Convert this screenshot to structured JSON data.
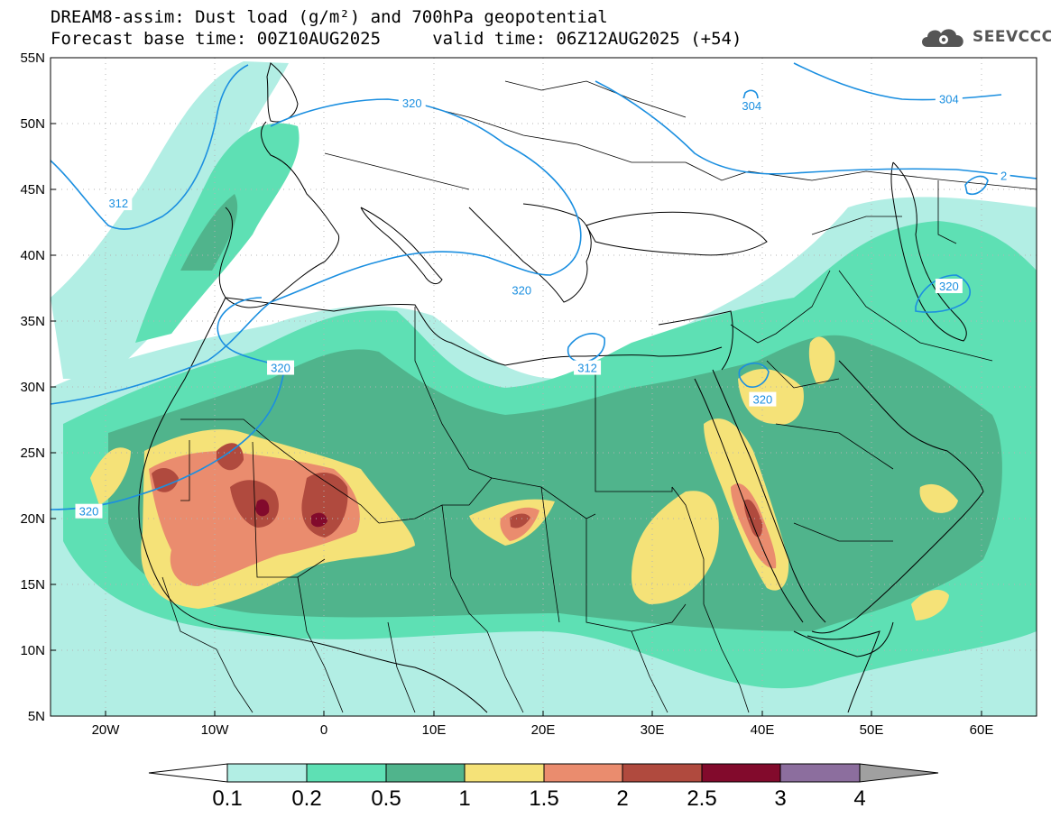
{
  "title": {
    "line1": "DREAM8-assim: Dust load (g/m²) and 700hPa geopotential",
    "line2": "Forecast base time: 00Z10AUG2025     valid time: 06Z12AUG2025 (+54)"
  },
  "logo": {
    "text": "SEEVCCC",
    "icon": "cloud-gear-icon"
  },
  "axes": {
    "lat_labels": [
      "55N",
      "50N",
      "45N",
      "40N",
      "35N",
      "30N",
      "25N",
      "20N",
      "15N",
      "10N",
      "5N"
    ],
    "lon_labels": [
      "20W",
      "10W",
      "0",
      "10E",
      "20E",
      "30E",
      "40E",
      "50E",
      "60E"
    ],
    "lon_range": [
      -25,
      65
    ],
    "lat_range": [
      5,
      55
    ]
  },
  "contour_labels": [
    {
      "text": "320",
      "lon": 8,
      "lat": 51.5
    },
    {
      "text": "304",
      "lon": 39,
      "lat": 51.3
    },
    {
      "text": "304",
      "lon": 57,
      "lat": 51.8
    },
    {
      "text": "312",
      "lon": -18.8,
      "lat": 43.9
    },
    {
      "text": "320",
      "lon": 18,
      "lat": 37.3
    },
    {
      "text": "320",
      "lon": 57,
      "lat": 37.6
    },
    {
      "text": "312",
      "lon": 24,
      "lat": 31.4
    },
    {
      "text": "320",
      "lon": 40,
      "lat": 29.0
    },
    {
      "text": "320",
      "lon": -21.5,
      "lat": 20.5
    },
    {
      "text": "320",
      "lon": -4,
      "lat": 31.4
    },
    {
      "text": "2",
      "lon": 62,
      "lat": 46.0
    }
  ],
  "colorbar": {
    "labels": [
      "0.1",
      "0.2",
      "0.5",
      "1",
      "1.5",
      "2",
      "2.5",
      "3",
      "4"
    ],
    "colors": [
      "#ffffff",
      "#b2eee4",
      "#5ee0b4",
      "#50b48c",
      "#f5e278",
      "#ea8c6e",
      "#b04a3e",
      "#820a2c",
      "#8c6e9e",
      "#a0a0a0"
    ]
  },
  "map_colors": {
    "ocean_land_bg": "#ffffff",
    "contour_line": "#1b8fe0",
    "grid_dots": "#b4b4b4"
  }
}
